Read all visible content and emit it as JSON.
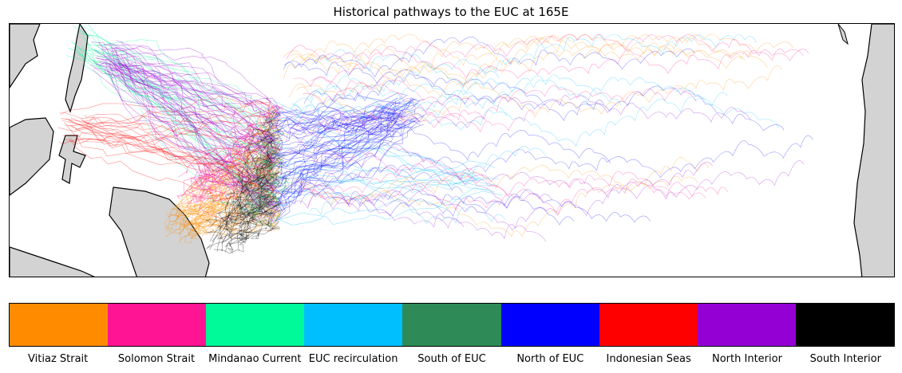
{
  "title": "Historical pathways to the EUC at 165E",
  "legend": [
    {
      "label": "Vitiaz Strait",
      "color": "#ff8c00"
    },
    {
      "label": "Solomon Strait",
      "color": "#ff1493"
    },
    {
      "label": "Mindanao Current",
      "color": "#00fa9a"
    },
    {
      "label": "EUC recirculation",
      "color": "#00bfff"
    },
    {
      "label": "South of EUC",
      "color": "#2e8b57"
    },
    {
      "label": "North of EUC",
      "color": "#0000ff"
    },
    {
      "label": "Indonesian Seas",
      "color": "#ff0000"
    },
    {
      "label": "North Interior",
      "color": "#9400d3"
    },
    {
      "label": "South Interior",
      "color": "#000000"
    }
  ],
  "colors": {
    "land": "#d3d3d3",
    "coast": "#000000"
  }
}
